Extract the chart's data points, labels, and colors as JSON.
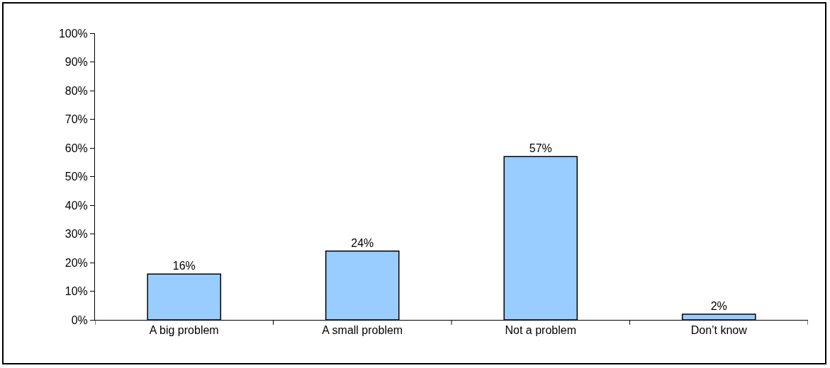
{
  "chart_data": {
    "type": "bar",
    "categories": [
      "A big problem",
      "A small problem",
      "Not a problem",
      "Don’t know"
    ],
    "values": [
      16,
      24,
      57,
      2
    ],
    "value_labels": [
      "16%",
      "24%",
      "57%",
      "2%"
    ],
    "color": "#99ccff",
    "ylim": [
      0,
      100
    ],
    "yticks": [
      {
        "value": 0,
        "label": "0%"
      },
      {
        "value": 10,
        "label": "10%"
      },
      {
        "value": 20,
        "label": "20%"
      },
      {
        "value": 30,
        "label": "30%"
      },
      {
        "value": 40,
        "label": "40%"
      },
      {
        "value": 50,
        "label": "50%"
      },
      {
        "value": 60,
        "label": "60%"
      },
      {
        "value": 70,
        "label": "70%"
      },
      {
        "value": 80,
        "label": "80%"
      },
      {
        "value": 90,
        "label": "90%"
      },
      {
        "value": 100,
        "label": "100%"
      }
    ]
  }
}
